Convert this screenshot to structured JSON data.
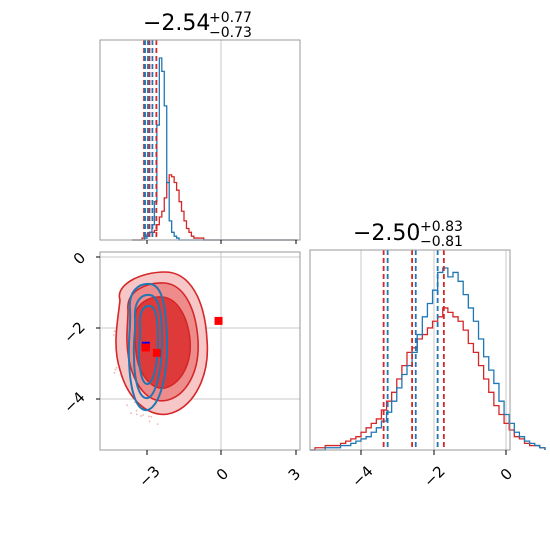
{
  "titles": {
    "param1": {
      "main": "−2.54",
      "sup": "+0.77",
      "sub": "−0.73"
    },
    "param2": {
      "main": "−2.50",
      "sup": "+0.83",
      "sub": "−0.81"
    }
  },
  "colors": {
    "blue": "#1f77b4",
    "red": "#d62728",
    "grid": "#c8c8c8"
  },
  "chart_data": {
    "type": "corner",
    "x_param": {
      "ticks": [
        -3,
        0,
        3
      ],
      "tick_labels": [
        "−3",
        "0",
        "3"
      ],
      "range": [
        -3.6,
        3.1
      ]
    },
    "y_param": {
      "ticks": [
        0,
        -2,
        -4
      ],
      "tick_labels": [
        "0",
        "−2",
        "−4"
      ],
      "range": [
        -5.4,
        0.2
      ]
    },
    "diag2_axis": {
      "ticks": [
        -4,
        -2,
        0
      ],
      "tick_labels": [
        "−4",
        "−2",
        "0"
      ],
      "range": [
        -5.4,
        0.2
      ]
    },
    "quantiles": {
      "param1": {
        "blue": [
          -3.08,
          -2.96,
          -2.78
        ],
        "red": [
          -3.12,
          -2.9,
          -2.62
        ]
      },
      "param2": {
        "blue": [
          -3.27,
          -2.5,
          -1.9
        ],
        "red": [
          -3.38,
          -2.6,
          -1.73
        ]
      }
    },
    "hist1": {
      "bin_start": -3.6,
      "bin_width": 0.1,
      "blue": [
        0,
        0,
        0,
        0,
        0,
        1,
        2,
        4,
        8,
        20,
        60,
        95,
        88,
        70,
        30,
        10,
        4,
        2,
        1,
        0,
        0,
        0,
        0,
        0,
        0,
        0,
        0,
        0,
        0,
        0,
        0,
        0,
        0,
        0,
        0,
        0,
        0,
        0,
        0,
        0,
        0,
        0,
        0,
        0,
        0,
        0,
        0,
        0,
        0,
        0,
        0,
        0,
        0,
        0,
        0,
        0,
        0,
        0,
        0,
        0,
        0,
        0,
        0,
        0,
        0,
        0,
        0
      ],
      "red": [
        0,
        0,
        0,
        0,
        1,
        2,
        3,
        4,
        4,
        5,
        8,
        12,
        15,
        22,
        30,
        34,
        33,
        30,
        26,
        20,
        15,
        10,
        6,
        4,
        2,
        1,
        1,
        1,
        1,
        0,
        0,
        0,
        0,
        0,
        0,
        0,
        0,
        0,
        0,
        0,
        0,
        0,
        0,
        0,
        0,
        0,
        0,
        0,
        0,
        0,
        0,
        0,
        0,
        0,
        0,
        0,
        0,
        0,
        0,
        0,
        0,
        0,
        0,
        0,
        0,
        0,
        0
      ]
    },
    "hist2": {
      "bin_start": -5.4,
      "bin_width": 0.14,
      "blue": [
        0,
        0,
        0,
        1,
        1,
        1,
        2,
        2,
        3,
        4,
        5,
        6,
        8,
        10,
        13,
        17,
        22,
        28,
        34,
        38,
        44,
        52,
        60,
        66,
        72,
        80,
        82,
        78,
        80,
        76,
        70,
        64,
        58,
        50,
        42,
        36,
        30,
        22,
        16,
        12,
        8,
        6,
        4,
        3,
        2,
        1
      ],
      "red": [
        0,
        1,
        1,
        2,
        2,
        2,
        3,
        4,
        5,
        6,
        8,
        10,
        12,
        14,
        18,
        22,
        26,
        32,
        38,
        44,
        46,
        50,
        52,
        55,
        58,
        60,
        64,
        62,
        60,
        58,
        54,
        48,
        44,
        38,
        32,
        26,
        20,
        16,
        12,
        9,
        6,
        5,
        3,
        2,
        2,
        1
      ]
    },
    "markers": [
      {
        "color": "red",
        "x": -0.1,
        "y": -1.8
      },
      {
        "color": "red",
        "x": -2.6,
        "y": -2.7
      },
      {
        "color": "blue",
        "x": -3.05,
        "y": -2.5
      },
      {
        "color": "red",
        "x": -3.05,
        "y": -2.55
      }
    ]
  }
}
